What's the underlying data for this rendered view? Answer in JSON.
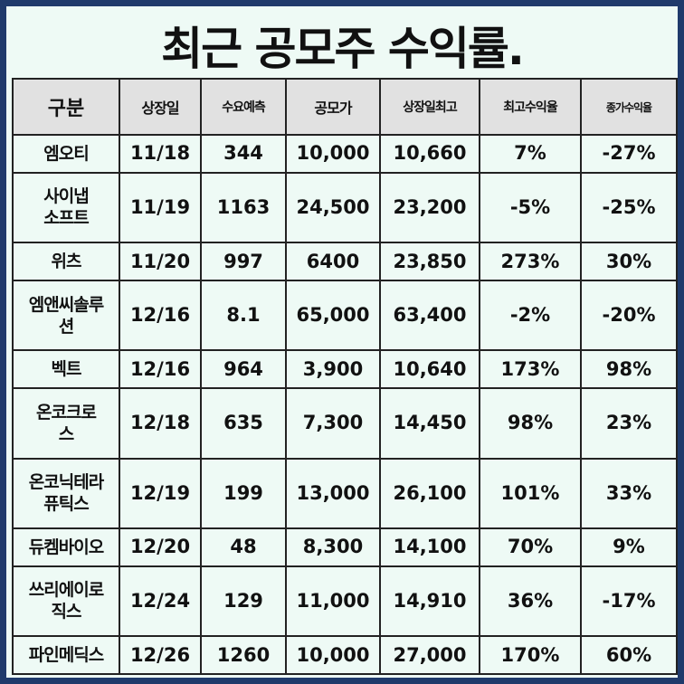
{
  "title": "최근 공모주 수익률.",
  "headers": [
    "구분",
    "상장일",
    "수요예측",
    "공모가",
    "상장일최고",
    "최고수익율",
    "종가수익율"
  ],
  "rows": [
    [
      "엠오티",
      "11/18",
      "344",
      "10,000",
      "10,660",
      "7%",
      "-27%"
    ],
    [
      "사이냅\n소프트",
      "11/19",
      "1163",
      "24,500",
      "23,200",
      "-5%",
      "-25%"
    ],
    [
      "위츠",
      "11/20",
      "997",
      "6400",
      "23,850",
      "273%",
      "30%"
    ],
    [
      "엠앤씨솔루\n션",
      "12/16",
      "8.1",
      "65,000",
      "63,400",
      "-2%",
      "-20%"
    ],
    [
      "벡트",
      "12/16",
      "964",
      "3,900",
      "10,640",
      "173%",
      "98%"
    ],
    [
      "온코크로\n스",
      "12/18",
      "635",
      "7,300",
      "14,450",
      "98%",
      "23%"
    ],
    [
      "온코닉테라\n퓨틱스",
      "12/19",
      "199",
      "13,000",
      "26,100",
      "101%",
      "33%"
    ],
    [
      "듀켐바이오",
      "12/20",
      "48",
      "8,300",
      "14,100",
      "70%",
      "9%"
    ],
    [
      "쓰리에이로\n직스",
      "12/24",
      "129",
      "11,000",
      "14,910",
      "36%",
      "-17%"
    ],
    [
      "파인메딕스",
      "12/26",
      "1260",
      "10,000",
      "27,000",
      "170%",
      "60%"
    ]
  ]
}
